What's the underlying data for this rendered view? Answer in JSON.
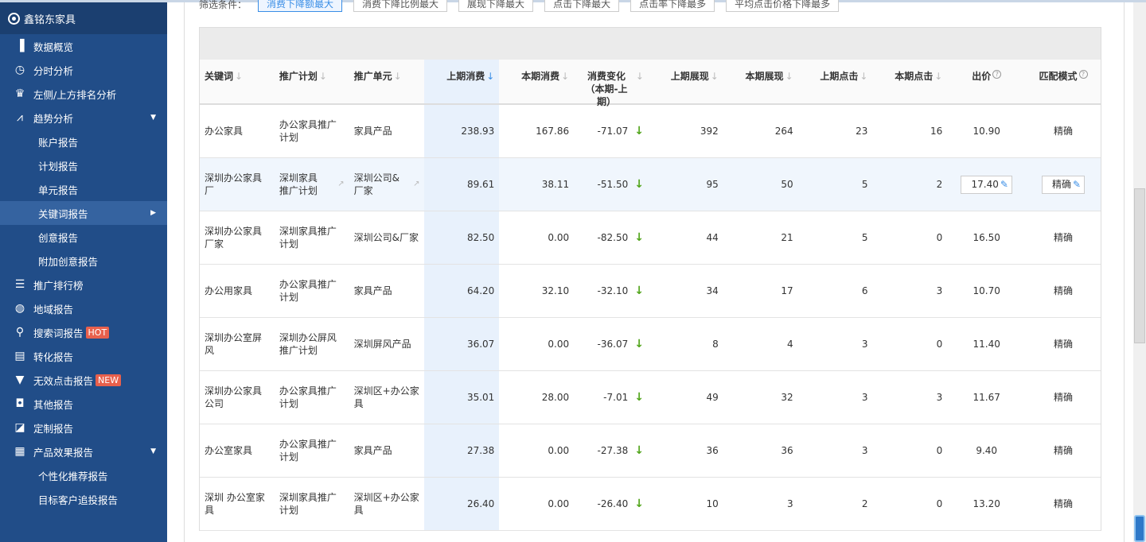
{
  "brand": "鑫铭东家具",
  "sidebar": {
    "items": [
      {
        "label": "数据概览",
        "icon": "bar-chart-icon",
        "g": "▐"
      },
      {
        "label": "分时分析",
        "icon": "clock-icon",
        "g": "◷"
      },
      {
        "label": "左侧/上方排名分析",
        "icon": "trophy-icon",
        "g": "♛"
      },
      {
        "label": "趋势分析",
        "icon": "trend-icon",
        "g": "⩘",
        "caret": "▼"
      },
      {
        "label": "账户报告",
        "sub": true
      },
      {
        "label": "计划报告",
        "sub": true
      },
      {
        "label": "单元报告",
        "sub": true
      },
      {
        "label": "关键词报告",
        "sub": true,
        "active": true,
        "caret": "▶"
      },
      {
        "label": "创意报告",
        "sub": true
      },
      {
        "label": "附加创意报告",
        "sub": true
      },
      {
        "label": "推广排行榜",
        "icon": "list-icon",
        "g": "☰"
      },
      {
        "label": "地域报告",
        "icon": "globe-icon",
        "g": "◍"
      },
      {
        "label": "搜索词报告",
        "icon": "search-icon",
        "g": "⚲",
        "badge": "HOT"
      },
      {
        "label": "转化报告",
        "icon": "clipboard-icon",
        "g": "▤"
      },
      {
        "label": "无效点击报告",
        "icon": "filter-icon",
        "g": "▼",
        "badge": "NEW"
      },
      {
        "label": "其他报告",
        "icon": "window-icon",
        "g": "◘"
      },
      {
        "label": "定制报告",
        "icon": "edit-icon",
        "g": "◪"
      },
      {
        "label": "产品效果报告",
        "icon": "calculator-icon",
        "g": "▦",
        "caret": "▼"
      },
      {
        "label": "个性化推荐报告",
        "sub": true
      },
      {
        "label": "目标客户追投报告",
        "sub": true
      }
    ]
  },
  "filters": {
    "label": "筛选条件：",
    "options": [
      "消费下降额最大",
      "消费下降比例最大",
      "展现下降最大",
      "点击下降最大",
      "点击率下降最多",
      "平均点击价格下降最多"
    ],
    "selected": 0
  },
  "table": {
    "columns": [
      "关键词",
      "推广计划",
      "推广单元",
      "上期消费",
      "本期消费",
      "消费变化（本期-上期）",
      "上期展现",
      "本期展现",
      "上期点击",
      "本期点击",
      "出价",
      "匹配模式"
    ],
    "rows": [
      [
        "办公家具",
        "办公家具推广计划",
        "家具产品",
        "238.93",
        "167.86",
        "-71.07",
        "392",
        "264",
        "23",
        "16",
        "10.90",
        "精确"
      ],
      [
        "深圳办公家具厂",
        "深圳家具推广计划",
        "深圳公司&厂家",
        "89.61",
        "38.11",
        "-51.50",
        "95",
        "50",
        "5",
        "2",
        "17.40",
        "精确"
      ],
      [
        "深圳办公家具厂家",
        "深圳家具推广计划",
        "深圳公司&厂家",
        "82.50",
        "0.00",
        "-82.50",
        "44",
        "21",
        "5",
        "0",
        "16.50",
        "精确"
      ],
      [
        "办公用家具",
        "办公家具推广计划",
        "家具产品",
        "64.20",
        "32.10",
        "-32.10",
        "34",
        "17",
        "6",
        "3",
        "10.70",
        "精确"
      ],
      [
        "深圳办公室屏风",
        "深圳办公屏风推广计划",
        "深圳屏风产品",
        "36.07",
        "0.00",
        "-36.07",
        "8",
        "4",
        "3",
        "0",
        "11.40",
        "精确"
      ],
      [
        "深圳办公家具公司",
        "办公家具推广计划",
        "深圳区+办公家具",
        "35.01",
        "28.00",
        "-7.01",
        "49",
        "32",
        "3",
        "3",
        "11.67",
        "精确"
      ],
      [
        "办公室家具",
        "办公家具推广计划",
        "家具产品",
        "27.38",
        "0.00",
        "-27.38",
        "36",
        "36",
        "3",
        "0",
        "9.40",
        "精确"
      ],
      [
        "深圳 办公室家具",
        "深圳家具推广计划",
        "深圳区+办公家具",
        "26.40",
        "0.00",
        "-26.40",
        "10",
        "3",
        "2",
        "0",
        "13.20",
        "精确"
      ]
    ],
    "hover_row": 1,
    "sorted_column": 3
  }
}
